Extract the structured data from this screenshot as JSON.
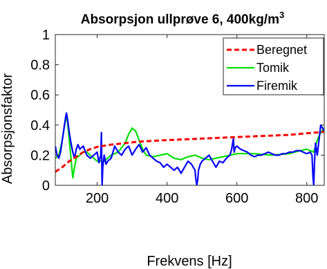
{
  "chart_data": {
    "type": "line",
    "title": "Absorpsjon ullprøve 6, 400kg/m",
    "title_superscript": "3",
    "xlabel": "Frekvens [Hz]",
    "ylabel": "Absorpsjonsfaktor",
    "xlim": [
      80,
      850
    ],
    "ylim": [
      0,
      1
    ],
    "xticks": [
      200,
      400,
      600,
      800
    ],
    "xtick_labels": [
      "200",
      "400",
      "600",
      "800"
    ],
    "yticks": [
      0,
      0.2,
      0.4,
      0.6,
      0.8,
      1
    ],
    "ytick_labels": [
      "0",
      "0.2",
      "0.4",
      "0.6",
      "0.8",
      "1"
    ],
    "grid": false,
    "legend_position": "top-right",
    "series": [
      {
        "name": "Beregnet",
        "color": "#ff0000",
        "style": "dashed",
        "x": [
          80,
          100,
          120,
          140,
          160,
          180,
          200,
          240,
          280,
          320,
          360,
          400,
          450,
          500,
          550,
          600,
          650,
          700,
          750,
          800,
          850
        ],
        "y": [
          0.09,
          0.12,
          0.16,
          0.19,
          0.22,
          0.24,
          0.255,
          0.27,
          0.28,
          0.29,
          0.295,
          0.3,
          0.305,
          0.31,
          0.315,
          0.32,
          0.325,
          0.33,
          0.335,
          0.345,
          0.355
        ]
      },
      {
        "name": "Tomik",
        "color": "#00e000",
        "style": "solid",
        "x": [
          80,
          90,
          100,
          110,
          115,
          120,
          125,
          130,
          135,
          140,
          150,
          160,
          170,
          180,
          190,
          200,
          220,
          240,
          260,
          280,
          290,
          300,
          310,
          320,
          330,
          340,
          360,
          380,
          400,
          420,
          440,
          460,
          480,
          500,
          520,
          540,
          560,
          580,
          600,
          650,
          700,
          750,
          780,
          800,
          820,
          830,
          840,
          850
        ],
        "y": [
          0.18,
          0.2,
          0.3,
          0.45,
          0.42,
          0.3,
          0.18,
          0.05,
          0.12,
          0.18,
          0.2,
          0.22,
          0.22,
          0.2,
          0.18,
          0.16,
          0.16,
          0.2,
          0.22,
          0.28,
          0.34,
          0.38,
          0.36,
          0.3,
          0.24,
          0.2,
          0.19,
          0.2,
          0.21,
          0.18,
          0.17,
          0.19,
          0.2,
          0.18,
          0.17,
          0.18,
          0.19,
          0.2,
          0.21,
          0.21,
          0.2,
          0.21,
          0.23,
          0.24,
          0.22,
          0.3,
          0.35,
          0.38
        ]
      },
      {
        "name": "Firemik",
        "color": "#0000ff",
        "style": "solid",
        "x": [
          80,
          85,
          90,
          95,
          100,
          105,
          110,
          112,
          115,
          120,
          125,
          130,
          135,
          140,
          145,
          150,
          160,
          170,
          180,
          190,
          200,
          205,
          210,
          212,
          214,
          216,
          220,
          225,
          230,
          240,
          250,
          260,
          270,
          280,
          290,
          300,
          310,
          320,
          330,
          340,
          350,
          360,
          370,
          380,
          390,
          400,
          410,
          420,
          430,
          440,
          450,
          460,
          470,
          480,
          482,
          485,
          488,
          490,
          495,
          500,
          510,
          520,
          530,
          540,
          550,
          560,
          570,
          580,
          585,
          590,
          592,
          595,
          600,
          610,
          620,
          630,
          640,
          650,
          660,
          670,
          680,
          690,
          700,
          710,
          720,
          730,
          740,
          750,
          760,
          770,
          780,
          790,
          800,
          810,
          815,
          818,
          820,
          822,
          825,
          830,
          835,
          840,
          845,
          850
        ],
        "y": [
          0.26,
          0.2,
          0.18,
          0.22,
          0.3,
          0.38,
          0.46,
          0.48,
          0.44,
          0.35,
          0.28,
          0.22,
          0.18,
          0.24,
          0.27,
          0.24,
          0.26,
          0.2,
          0.18,
          0.2,
          0.22,
          0.15,
          0.2,
          0.35,
          0.0,
          0.12,
          0.2,
          0.14,
          0.16,
          0.18,
          0.26,
          0.22,
          0.2,
          0.24,
          0.26,
          0.2,
          0.24,
          0.27,
          0.22,
          0.25,
          0.2,
          0.18,
          0.16,
          0.15,
          0.12,
          0.14,
          0.12,
          0.1,
          0.12,
          0.08,
          0.12,
          0.16,
          0.14,
          0.1,
          0.05,
          0.0,
          0.04,
          0.1,
          0.14,
          0.16,
          0.18,
          0.2,
          0.16,
          0.12,
          0.16,
          0.15,
          0.18,
          0.2,
          0.24,
          0.31,
          0.22,
          0.25,
          0.26,
          0.24,
          0.23,
          0.22,
          0.2,
          0.19,
          0.2,
          0.2,
          0.21,
          0.22,
          0.21,
          0.2,
          0.2,
          0.21,
          0.21,
          0.22,
          0.22,
          0.23,
          0.23,
          0.22,
          0.21,
          0.22,
          0.2,
          0.05,
          0.0,
          0.15,
          0.28,
          0.2,
          0.3,
          0.4,
          0.38,
          0.36
        ]
      }
    ]
  }
}
